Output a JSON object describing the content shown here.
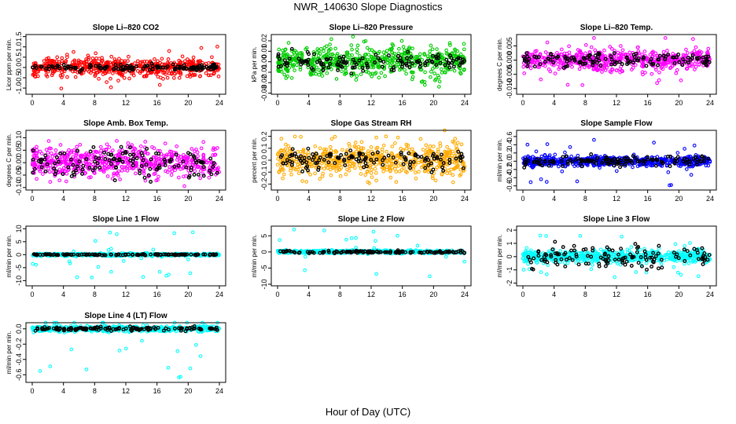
{
  "figure": {
    "title": "NWR_140630  Slope Diagnostics",
    "xlabel": "Hour of Day (UTC)"
  },
  "chart_data": [
    {
      "type": "scatter",
      "title": "Slope Li–820 CO2",
      "ylabel": "Licor ppm per min.",
      "xlim": [
        0,
        24
      ],
      "ylim": [
        -1.3,
        1.6
      ],
      "xticks": [
        "0",
        "4",
        "8",
        "12",
        "16",
        "20",
        "24"
      ],
      "xtick_values": [
        0,
        4,
        8,
        12,
        16,
        20,
        24
      ],
      "yticks": [
        "-1.0",
        "-0.5",
        "0.0",
        "0.5",
        "1.0",
        "1.5"
      ],
      "ytick_values": [
        -1.0,
        -0.5,
        0.0,
        0.5,
        1.0,
        1.5
      ],
      "series": [
        {
          "color": "#ff0000",
          "spread": 0.35,
          "outlier_spread": 1.1
        },
        {
          "color": "#000000",
          "spread": 0.12
        }
      ]
    },
    {
      "type": "scatter",
      "title": "Slope Li–820 Pressure",
      "ylabel": "kPa per min.",
      "xlim": [
        0,
        24
      ],
      "ylim": [
        -0.031,
        0.026
      ],
      "xticks": [
        "0",
        "4",
        "8",
        "12",
        "16",
        "20",
        "24"
      ],
      "xtick_values": [
        0,
        4,
        8,
        12,
        16,
        20,
        24
      ],
      "yticks": [
        "-0.03",
        "-0.02",
        "-0.01",
        "0.00",
        "0.01",
        "0.02"
      ],
      "ytick_values": [
        -0.03,
        -0.02,
        -0.01,
        0.0,
        0.01,
        0.02
      ],
      "series": [
        {
          "color": "#00cc00",
          "spread": 0.012,
          "outlier_spread": 0.024
        },
        {
          "color": "#000000",
          "spread": 0.006
        }
      ]
    },
    {
      "type": "scatter",
      "title": "Slope Li–820 Temp.",
      "ylabel": "degrees C per min.",
      "xlim": [
        0,
        24
      ],
      "ylim": [
        -0.012,
        0.009
      ],
      "xticks": [
        "0",
        "4",
        "8",
        "12",
        "16",
        "20",
        "24"
      ],
      "xtick_values": [
        0,
        4,
        8,
        12,
        16,
        20,
        24
      ],
      "yticks": [
        "-0.010",
        "-0.005",
        "0.000",
        "0.005"
      ],
      "ytick_values": [
        -0.01,
        -0.005,
        0.0,
        0.005
      ],
      "series": [
        {
          "color": "#ff00ff",
          "spread": 0.003,
          "outlier_spread": 0.009
        },
        {
          "color": "#000000",
          "spread": 0.002
        }
      ]
    },
    {
      "type": "scatter",
      "title": "Slope Amb. Box Temp.",
      "ylabel": "degrees C per min.",
      "xlim": [
        0,
        24
      ],
      "ylim": [
        -0.11,
        0.13
      ],
      "xticks": [
        "0",
        "4",
        "8",
        "12",
        "16",
        "20",
        "24"
      ],
      "xtick_values": [
        0,
        4,
        8,
        12,
        16,
        20,
        24
      ],
      "yticks": [
        "-0.10",
        "-0.05",
        "0.00",
        "0.05",
        "0.10"
      ],
      "ytick_values": [
        -0.1,
        -0.05,
        0.0,
        0.05,
        0.1
      ],
      "series": [
        {
          "color": "#ff00ff",
          "spread": 0.05,
          "outlier_spread": 0.1
        },
        {
          "color": "#000000",
          "spread": 0.05
        }
      ]
    },
    {
      "type": "scatter",
      "title": "Slope Gas Stream RH",
      "ylabel": "percent per min.",
      "xlim": [
        0,
        24
      ],
      "ylim": [
        -0.25,
        0.25
      ],
      "xticks": [
        "0",
        "4",
        "8",
        "12",
        "16",
        "20",
        "24"
      ],
      "xtick_values": [
        0,
        4,
        8,
        12,
        16,
        20,
        24
      ],
      "yticks": [
        "-0.2",
        "-0.1",
        "0.0",
        "0.1",
        "0.2"
      ],
      "ytick_values": [
        -0.2,
        -0.1,
        0.0,
        0.1,
        0.2
      ],
      "series": [
        {
          "color": "#ffaa00",
          "spread": 0.11,
          "outlier_spread": 0.2
        },
        {
          "color": "#000000",
          "spread": 0.07
        }
      ]
    },
    {
      "type": "scatter",
      "title": "Slope Sample Flow",
      "ylabel": "ml/min per min.",
      "xlim": [
        0,
        24
      ],
      "ylim": [
        -0.7,
        0.75
      ],
      "xticks": [
        "0",
        "4",
        "8",
        "12",
        "16",
        "20",
        "24"
      ],
      "xtick_values": [
        0,
        4,
        8,
        12,
        16,
        20,
        24
      ],
      "yticks": [
        "-0.6",
        "-0.4",
        "-0.2",
        "0.0",
        "0.2",
        "0.4",
        "0.6"
      ],
      "ytick_values": [
        -0.6,
        -0.4,
        -0.2,
        0.0,
        0.2,
        0.4,
        0.6
      ],
      "series": [
        {
          "color": "#0000ff",
          "spread": 0.1,
          "outlier_spread": 0.6
        },
        {
          "color": "#000000",
          "spread": 0.1
        }
      ]
    },
    {
      "type": "scatter",
      "title": "Slope Line 1 Flow",
      "ylabel": "ml/min per min.",
      "xlim": [
        0,
        24
      ],
      "ylim": [
        -12,
        11
      ],
      "xticks": [
        "0",
        "4",
        "8",
        "12",
        "16",
        "20",
        "24"
      ],
      "xtick_values": [
        0,
        4,
        8,
        12,
        16,
        20,
        24
      ],
      "yticks": [
        "-10",
        "-5",
        "0",
        "5",
        "10"
      ],
      "ytick_values": [
        -10,
        -5,
        0,
        5,
        10
      ],
      "series": [
        {
          "color": "#00ffff",
          "spread": 0.4,
          "outlier_spread": 9
        },
        {
          "color": "#000000",
          "spread": 0.2
        }
      ]
    },
    {
      "type": "scatter",
      "title": "Slope Line 2 Flow",
      "ylabel": "ml/min per min.",
      "xlim": [
        0,
        24
      ],
      "ylim": [
        -10.5,
        8
      ],
      "xticks": [
        "0",
        "4",
        "8",
        "12",
        "16",
        "20",
        "24"
      ],
      "xtick_values": [
        0,
        4,
        8,
        12,
        16,
        20,
        24
      ],
      "yticks": [
        "-10",
        "-5",
        "0",
        "5"
      ],
      "ytick_values": [
        -10,
        -5,
        0,
        5
      ],
      "series": [
        {
          "color": "#00ffff",
          "spread": 0.4,
          "outlier_spread": 8
        },
        {
          "color": "#000000",
          "spread": 0.3
        }
      ]
    },
    {
      "type": "scatter",
      "title": "Slope Line 3 Flow",
      "ylabel": "ml/min per min.",
      "xlim": [
        0,
        24
      ],
      "ylim": [
        -2.2,
        2.3
      ],
      "xticks": [
        "0",
        "4",
        "8",
        "12",
        "16",
        "20",
        "24"
      ],
      "xtick_values": [
        0,
        4,
        8,
        12,
        16,
        20,
        24
      ],
      "yticks": [
        "-2",
        "-1",
        "0",
        "1",
        "2"
      ],
      "ytick_values": [
        -2,
        -1,
        0,
        1,
        2
      ],
      "series": [
        {
          "color": "#00ffff",
          "spread": 0.4,
          "outlier_spread": 1.6
        },
        {
          "color": "#000000",
          "spread": 0.7
        }
      ]
    },
    {
      "type": "scatter",
      "title": "Slope Line 4 (LT) Flow",
      "ylabel": "ml/min per min.",
      "xlim": [
        0,
        24
      ],
      "ylim": [
        -0.7,
        0.08
      ],
      "xticks": [
        "0",
        "4",
        "8",
        "12",
        "16",
        "20",
        "24"
      ],
      "xtick_values": [
        0,
        4,
        8,
        12,
        16,
        20,
        24
      ],
      "yticks": [
        "-0.6",
        "-0.4",
        "-0.2",
        "0.0"
      ],
      "ytick_values": [
        -0.6,
        -0.4,
        -0.2,
        0.0
      ],
      "series": [
        {
          "color": "#00ffff",
          "spread": 0.03,
          "outlier_spread": 0.65
        },
        {
          "color": "#000000",
          "spread": 0.02
        }
      ]
    }
  ]
}
